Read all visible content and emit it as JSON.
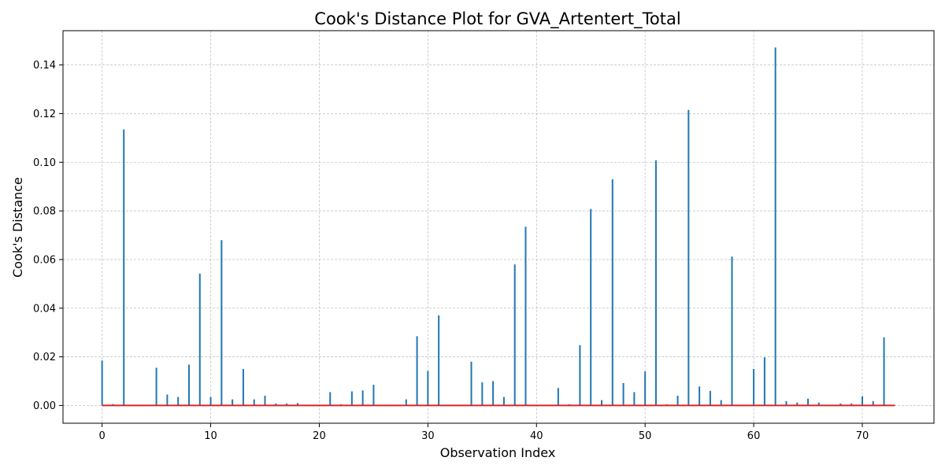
{
  "chart_data": {
    "type": "stem",
    "title": "Cook's Distance Plot for GVA_Artentert_Total",
    "xlabel": "Observation Index",
    "ylabel": "Cook's Distance",
    "xlim": [
      -3.6,
      76.6
    ],
    "ylim": [
      -0.0073,
      0.1541
    ],
    "x_ticks": [
      0,
      10,
      20,
      30,
      40,
      50,
      60,
      70
    ],
    "y_ticks": [
      0.0,
      0.02,
      0.04,
      0.06,
      0.08,
      0.1,
      0.12,
      0.14
    ],
    "y_tick_labels": [
      "0.00",
      "0.02",
      "0.04",
      "0.06",
      "0.08",
      "0.10",
      "0.12",
      "0.14"
    ],
    "grid": true,
    "baseline": {
      "y": 0,
      "x_start": 0,
      "x_end": 73
    },
    "colors": {
      "stem": "#1f77b4",
      "baseline": "#d62728",
      "grid": "#b0b0b0"
    },
    "series": [
      {
        "x": [
          0,
          1,
          2,
          3,
          4,
          5,
          6,
          7,
          8,
          9,
          10,
          11,
          12,
          13,
          14,
          15,
          16,
          17,
          18,
          19,
          20,
          21,
          22,
          23,
          24,
          25,
          26,
          27,
          28,
          29,
          30,
          31,
          32,
          33,
          34,
          35,
          36,
          37,
          38,
          39,
          40,
          41,
          42,
          43,
          44,
          45,
          46,
          47,
          48,
          49,
          50,
          51,
          52,
          53,
          54,
          55,
          56,
          57,
          58,
          59,
          60,
          61,
          62,
          63,
          64,
          65,
          66,
          67,
          68,
          69,
          70,
          71,
          72
        ],
        "values": [
          0.0185,
          0.0006,
          0.1135,
          0.0,
          0.0,
          0.0155,
          0.0045,
          0.0035,
          0.0168,
          0.0542,
          0.0035,
          0.068,
          0.0025,
          0.015,
          0.0025,
          0.004,
          0.0008,
          0.0008,
          0.001,
          0.0,
          0.0,
          0.0055,
          0.0005,
          0.0058,
          0.0062,
          0.0085,
          0.0,
          0.0,
          0.0025,
          0.0285,
          0.0142,
          0.037,
          0.0,
          0.0,
          0.018,
          0.0095,
          0.01,
          0.0035,
          0.058,
          0.0735,
          0.0,
          0.0003,
          0.0072,
          0.0005,
          0.0248,
          0.0808,
          0.0022,
          0.093,
          0.0092,
          0.0055,
          0.014,
          0.1008,
          0.0005,
          0.004,
          0.1215,
          0.0078,
          0.006,
          0.0022,
          0.0612,
          0.0,
          0.015,
          0.0198,
          0.1472,
          0.0018,
          0.0012,
          0.0028,
          0.0012,
          0.0,
          0.0008,
          0.0008,
          0.0038,
          0.0018,
          0.028
        ]
      }
    ]
  }
}
